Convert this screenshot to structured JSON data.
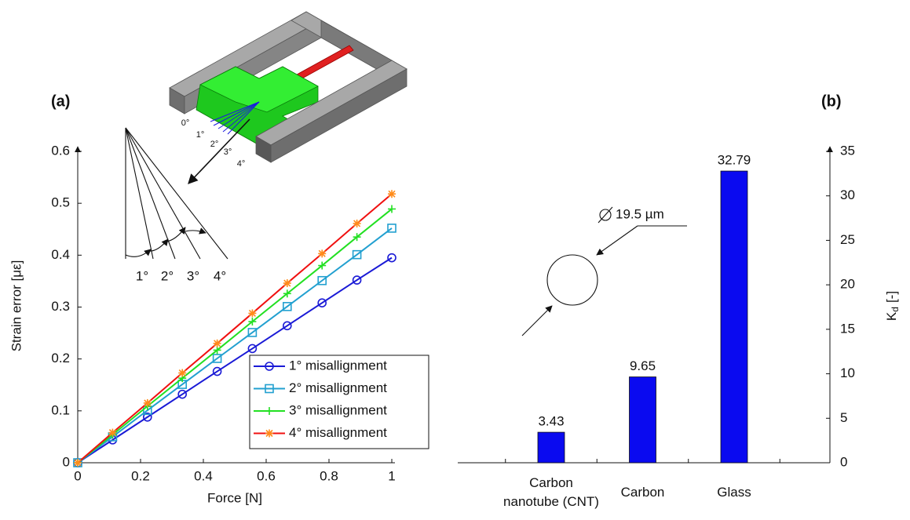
{
  "chart_data": [
    {
      "type": "line",
      "panel": "(a)",
      "xlabel": "Force [N]",
      "ylabel": "Strain error [με]",
      "x": [
        0,
        0.111,
        0.222,
        0.333,
        0.444,
        0.556,
        0.667,
        0.778,
        0.889,
        1
      ],
      "series": [
        {
          "name": "1° misallignment",
          "color": "#1a1ad6",
          "marker_color": "#1a1ad6",
          "marker": "circle",
          "values": [
            0,
            0.044,
            0.088,
            0.132,
            0.176,
            0.22,
            0.264,
            0.308,
            0.352,
            0.395
          ]
        },
        {
          "name": "2° misallignment",
          "color": "#22a0d0",
          "marker_color": "#22a0d0",
          "marker": "square",
          "values": [
            0,
            0.05,
            0.101,
            0.151,
            0.201,
            0.251,
            0.301,
            0.351,
            0.401,
            0.452
          ]
        },
        {
          "name": "3° misallignment",
          "color": "#22e022",
          "marker_color": "#22e022",
          "marker": "plus",
          "values": [
            0,
            0.054,
            0.109,
            0.163,
            0.217,
            0.272,
            0.326,
            0.38,
            0.435,
            0.489
          ]
        },
        {
          "name": "4° misallignment",
          "color": "#f01010",
          "marker_color": "#ff8c1a",
          "marker": "asterisk",
          "values": [
            0,
            0.058,
            0.115,
            0.173,
            0.23,
            0.288,
            0.346,
            0.403,
            0.461,
            0.518
          ]
        }
      ],
      "xlim": [
        0,
        1
      ],
      "xticks": [
        0,
        0.2,
        0.4,
        0.6,
        0.8,
        1
      ],
      "ylim": [
        0,
        0.6
      ],
      "yticks": [
        0,
        0.1,
        0.2,
        0.3,
        0.4,
        0.5,
        0.6
      ],
      "device_labels": [
        "0°",
        "1°",
        "2°",
        "3°",
        "4°"
      ],
      "fan_labels": [
        "1°",
        "2°",
        "3°",
        "4°"
      ]
    },
    {
      "type": "bar",
      "panel": "(b)",
      "ylabel": {
        "base": "K",
        "subscript": "d",
        "unit": "[-]"
      },
      "categories": [
        "Carbon nanotube (CNT)",
        "Carbon",
        "Glass"
      ],
      "values": [
        3.43,
        9.65,
        32.79
      ],
      "color": "#0a0af0",
      "ylim": [
        0,
        35
      ],
      "yticks": [
        0,
        5,
        10,
        15,
        20,
        25,
        30,
        35
      ],
      "annotation": "19.5 µm"
    }
  ]
}
